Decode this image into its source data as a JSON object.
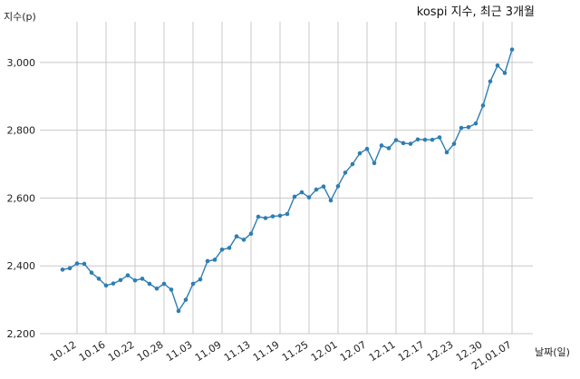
{
  "chart_data": {
    "type": "line",
    "title": "kospi 지수, 최근 3개월",
    "ylabel": "지수(p)",
    "xlabel": "날짜(일)",
    "ylim": [
      2200,
      3120
    ],
    "yticks": [
      2200,
      2400,
      2600,
      2800,
      3000
    ],
    "ytick_labels": [
      "2,200",
      "2,400",
      "2,600",
      "2,800",
      "3,000"
    ],
    "xtick_labels": [
      "10.12",
      "10.16",
      "10.22",
      "10.28",
      "11.03",
      "11.09",
      "11.13",
      "11.19",
      "11.25",
      "12.01",
      "12.07",
      "12.11",
      "12.17",
      "12.23",
      "12.30",
      "21.01.07"
    ],
    "xtick_index": [
      2,
      6,
      10,
      14,
      18,
      22,
      26,
      30,
      34,
      38,
      42,
      46,
      50,
      54,
      58,
      62
    ],
    "grid": true,
    "line_color": "#2e7eb3",
    "series": [
      {
        "values": [
          2389,
          2393,
          2407,
          2406,
          2380,
          2362,
          2342,
          2348,
          2358,
          2372,
          2357,
          2362,
          2347,
          2333,
          2347,
          2330,
          2267,
          2300,
          2347,
          2360,
          2414,
          2418,
          2448,
          2453,
          2487,
          2477,
          2495,
          2545,
          2541,
          2546,
          2548,
          2553,
          2604,
          2617,
          2602,
          2625,
          2634,
          2593,
          2635,
          2675,
          2700,
          2732,
          2745,
          2703,
          2755,
          2747,
          2771,
          2762,
          2760,
          2773,
          2772,
          2772,
          2779,
          2735,
          2760,
          2807,
          2809,
          2820,
          2873,
          2944,
          2991,
          2969,
          3038
        ]
      }
    ]
  }
}
